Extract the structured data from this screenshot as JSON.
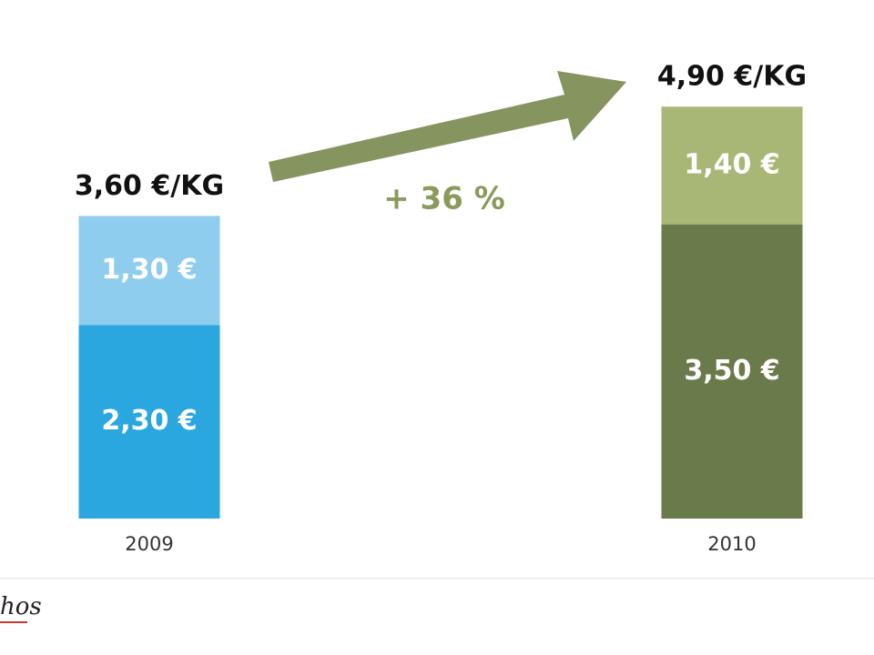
{
  "chart_data": {
    "type": "stacked_bar",
    "categories": [
      "2009",
      "2010"
    ],
    "series": [
      {
        "colors": [
          "#2aa7df",
          "#6b7a4b"
        ],
        "values": [
          2.3,
          3.5
        ],
        "value_labels": [
          "2,30 €",
          "3,50 €"
        ]
      },
      {
        "colors": [
          "#8fcdee",
          "#a8b676"
        ],
        "values": [
          1.3,
          1.4
        ],
        "value_labels": [
          "1,30 €",
          "1,40 €"
        ]
      }
    ],
    "totals": {
      "values": [
        3.6,
        4.9
      ],
      "value_labels": [
        "3,60 €/KG",
        "4,90 €/KG"
      ]
    },
    "annotation": "+ 36 %",
    "ylim": [
      0,
      5
    ]
  },
  "logo": "hos"
}
